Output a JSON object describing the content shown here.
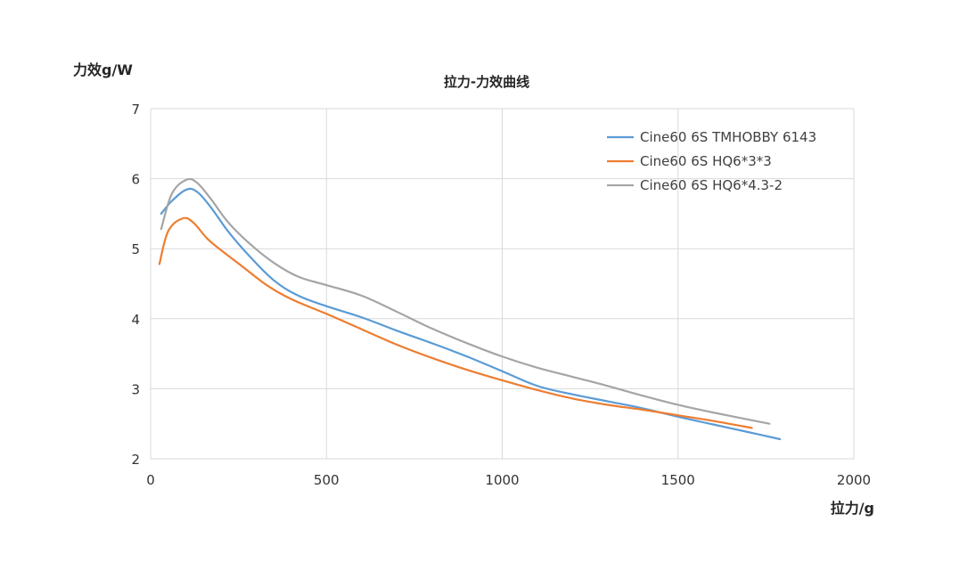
{
  "chart_data": {
    "type": "line",
    "title": "拉力-力效曲线",
    "xlabel": "拉力/g",
    "ylabel": "力效g/W",
    "xlim": [
      0,
      2000
    ],
    "ylim": [
      2,
      7
    ],
    "xticks": [
      0,
      500,
      1000,
      1500,
      2000
    ],
    "yticks": [
      2,
      3,
      4,
      5,
      6,
      7
    ],
    "grid": true,
    "legend_position": "top-right",
    "series": [
      {
        "name": "Cine60 6S TMHOBBY 6143",
        "color": "#5b9bd5",
        "x": [
          30,
          60,
          100,
          130,
          170,
          220,
          280,
          350,
          420,
          500,
          600,
          700,
          800,
          900,
          1000,
          1100,
          1200,
          1300,
          1400,
          1500,
          1600,
          1700,
          1790
        ],
        "y": [
          5.5,
          5.68,
          5.84,
          5.82,
          5.6,
          5.25,
          4.9,
          4.55,
          4.33,
          4.18,
          4.02,
          3.83,
          3.65,
          3.46,
          3.25,
          3.04,
          2.92,
          2.82,
          2.72,
          2.6,
          2.49,
          2.38,
          2.28
        ]
      },
      {
        "name": "Cine60 6S HQ6*3*3",
        "color": "#ed7d31",
        "x": [
          25,
          50,
          90,
          120,
          160,
          200,
          260,
          330,
          400,
          500,
          600,
          700,
          800,
          900,
          1000,
          1100,
          1200,
          1300,
          1400,
          1500,
          1600,
          1710
        ],
        "y": [
          4.78,
          5.25,
          5.43,
          5.38,
          5.15,
          4.98,
          4.75,
          4.48,
          4.28,
          4.07,
          3.85,
          3.63,
          3.44,
          3.27,
          3.12,
          2.98,
          2.86,
          2.77,
          2.7,
          2.62,
          2.54,
          2.44
        ]
      },
      {
        "name": "Cine60 6S HQ6*4.3-2",
        "color": "#a5a5a5",
        "x": [
          30,
          60,
          100,
          130,
          170,
          220,
          280,
          350,
          420,
          500,
          600,
          700,
          800,
          900,
          1000,
          1100,
          1200,
          1300,
          1400,
          1500,
          1600,
          1760
        ],
        "y": [
          5.28,
          5.78,
          5.98,
          5.95,
          5.72,
          5.38,
          5.08,
          4.8,
          4.6,
          4.48,
          4.33,
          4.1,
          3.86,
          3.65,
          3.46,
          3.3,
          3.17,
          3.04,
          2.9,
          2.77,
          2.66,
          2.5
        ]
      }
    ]
  }
}
